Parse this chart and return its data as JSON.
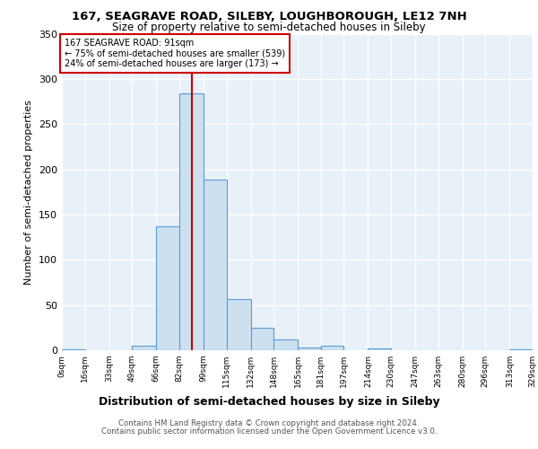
{
  "title1": "167, SEAGRAVE ROAD, SILEBY, LOUGHBOROUGH, LE12 7NH",
  "title2": "Size of property relative to semi-detached houses in Sileby",
  "xlabel": "Distribution of semi-detached houses by size in Sileby",
  "ylabel": "Number of semi-detached properties",
  "annotation_line1": "167 SEAGRAVE ROAD: 91sqm",
  "annotation_line2": "← 75% of semi-detached houses are smaller (539)",
  "annotation_line3": "24% of semi-detached houses are larger (173) →",
  "footer1": "Contains HM Land Registry data © Crown copyright and database right 2024.",
  "footer2": "Contains public sector information licensed under the Open Government Licence v3.0.",
  "property_size": 91,
  "bar_edges": [
    0,
    16,
    33,
    49,
    66,
    82,
    99,
    115,
    132,
    148,
    165,
    181,
    197,
    214,
    230,
    247,
    263,
    280,
    296,
    313,
    329
  ],
  "bar_heights": [
    1,
    0,
    0,
    5,
    137,
    284,
    189,
    57,
    25,
    12,
    3,
    5,
    0,
    2,
    0,
    0,
    0,
    0,
    0,
    1
  ],
  "bar_color": "#cce0f0",
  "bar_edge_color": "#5b9bd5",
  "vline_color": "#cc0000",
  "background_color": "#e8f0f8",
  "grid_color": "#ffffff",
  "ylim": [
    0,
    350
  ],
  "xlim": [
    0,
    329
  ],
  "tick_labels": [
    "0sqm",
    "16sqm",
    "33sqm",
    "49sqm",
    "66sqm",
    "82sqm",
    "99sqm",
    "115sqm",
    "132sqm",
    "148sqm",
    "165sqm",
    "181sqm",
    "197sqm",
    "214sqm",
    "230sqm",
    "247sqm",
    "263sqm",
    "280sqm",
    "296sqm",
    "313sqm",
    "329sqm"
  ]
}
